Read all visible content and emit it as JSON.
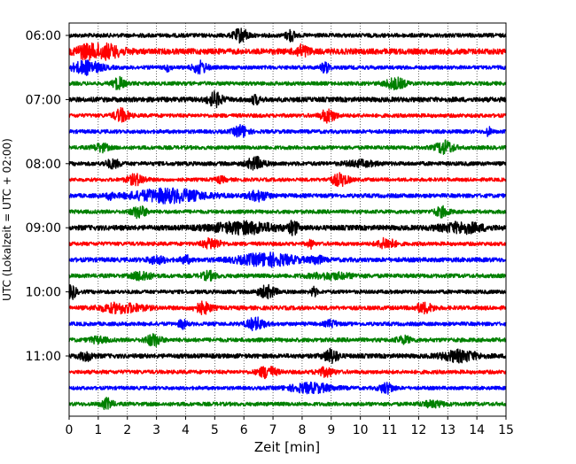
{
  "chart_data": {
    "type": "line",
    "title": "",
    "xlabel": "Zeit  [min]",
    "ylabel": "UTC (Lokalzeit = UTC + 02:00)",
    "xlim": [
      0,
      15
    ],
    "x_ticks": [
      "0",
      "1",
      "2",
      "3",
      "4",
      "5",
      "6",
      "7",
      "8",
      "9",
      "10",
      "11",
      "12",
      "13",
      "14",
      "15"
    ],
    "row_labels": [
      {
        "row": 0,
        "label": "06:00"
      },
      {
        "row": 4,
        "label": "07:00"
      },
      {
        "row": 8,
        "label": "08:00"
      },
      {
        "row": 12,
        "label": "09:00"
      },
      {
        "row": 16,
        "label": "10:00"
      },
      {
        "row": 20,
        "label": "11:00"
      }
    ],
    "grid": "vertical dotted lines at each minute",
    "trace_colors": [
      "#000000",
      "#ff0000",
      "#0000ff",
      "#008000"
    ],
    "rows": [
      {
        "start": "06:00",
        "color": "#000000",
        "noise": 0.32,
        "events": [
          {
            "t": 5.9,
            "amp": 1.0,
            "dur": 0.5
          },
          {
            "t": 7.6,
            "amp": 0.9,
            "dur": 0.3
          }
        ]
      },
      {
        "start": "06:15",
        "color": "#ff0000",
        "noise": 0.45,
        "events": [
          {
            "t": 1.2,
            "amp": 1.0,
            "dur": 1.2
          },
          {
            "t": 8.0,
            "amp": 0.8,
            "dur": 0.5
          },
          {
            "t": 0.5,
            "amp": 0.7,
            "dur": 0.6
          }
        ]
      },
      {
        "start": "06:30",
        "color": "#0000ff",
        "noise": 0.3,
        "events": [
          {
            "t": 0.6,
            "amp": 1.0,
            "dur": 1.0
          },
          {
            "t": 3.4,
            "amp": 0.5,
            "dur": 0.2
          },
          {
            "t": 4.5,
            "amp": 0.9,
            "dur": 0.5
          },
          {
            "t": 8.8,
            "amp": 0.8,
            "dur": 0.3
          }
        ]
      },
      {
        "start": "06:45",
        "color": "#008000",
        "noise": 0.3,
        "events": [
          {
            "t": 1.7,
            "amp": 0.9,
            "dur": 0.4
          },
          {
            "t": 11.2,
            "amp": 0.8,
            "dur": 0.7
          }
        ]
      },
      {
        "start": "07:00",
        "color": "#000000",
        "noise": 0.38,
        "events": [
          {
            "t": 5.0,
            "amp": 1.0,
            "dur": 0.5
          },
          {
            "t": 6.4,
            "amp": 0.6,
            "dur": 0.3
          }
        ]
      },
      {
        "start": "07:15",
        "color": "#ff0000",
        "noise": 0.3,
        "events": [
          {
            "t": 1.8,
            "amp": 1.0,
            "dur": 0.5
          },
          {
            "t": 8.9,
            "amp": 1.0,
            "dur": 0.5
          }
        ]
      },
      {
        "start": "07:30",
        "color": "#0000ff",
        "noise": 0.3,
        "events": [
          {
            "t": 5.9,
            "amp": 0.9,
            "dur": 0.5
          },
          {
            "t": 14.4,
            "amp": 0.6,
            "dur": 0.2
          }
        ]
      },
      {
        "start": "07:45",
        "color": "#008000",
        "noise": 0.3,
        "events": [
          {
            "t": 1.1,
            "amp": 0.6,
            "dur": 0.5
          },
          {
            "t": 12.9,
            "amp": 1.0,
            "dur": 0.6
          }
        ]
      },
      {
        "start": "08:00",
        "color": "#000000",
        "noise": 0.32,
        "events": [
          {
            "t": 1.5,
            "amp": 0.6,
            "dur": 0.5
          },
          {
            "t": 6.4,
            "amp": 0.9,
            "dur": 0.6
          },
          {
            "t": 10.0,
            "amp": 0.4,
            "dur": 1.0
          }
        ]
      },
      {
        "start": "08:15",
        "color": "#ff0000",
        "noise": 0.28,
        "events": [
          {
            "t": 2.3,
            "amp": 0.8,
            "dur": 0.6
          },
          {
            "t": 9.3,
            "amp": 0.9,
            "dur": 0.6
          },
          {
            "t": 5.2,
            "amp": 0.4,
            "dur": 0.4
          }
        ]
      },
      {
        "start": "08:30",
        "color": "#0000ff",
        "noise": 0.32,
        "events": [
          {
            "t": 3.4,
            "amp": 1.0,
            "dur": 2.5
          },
          {
            "t": 6.5,
            "amp": 0.7,
            "dur": 0.7
          },
          {
            "t": 1.4,
            "amp": 0.5,
            "dur": 0.2
          }
        ]
      },
      {
        "start": "08:45",
        "color": "#008000",
        "noise": 0.3,
        "events": [
          {
            "t": 2.4,
            "amp": 0.9,
            "dur": 0.5
          },
          {
            "t": 12.8,
            "amp": 0.7,
            "dur": 0.5
          }
        ]
      },
      {
        "start": "09:00",
        "color": "#000000",
        "noise": 0.4,
        "events": [
          {
            "t": 6.0,
            "amp": 0.8,
            "dur": 2.2
          },
          {
            "t": 7.7,
            "amp": 1.0,
            "dur": 0.3
          },
          {
            "t": 13.5,
            "amp": 0.7,
            "dur": 1.5
          }
        ]
      },
      {
        "start": "09:15",
        "color": "#ff0000",
        "noise": 0.3,
        "events": [
          {
            "t": 4.9,
            "amp": 0.8,
            "dur": 0.6
          },
          {
            "t": 8.3,
            "amp": 0.6,
            "dur": 0.2
          },
          {
            "t": 10.9,
            "amp": 0.8,
            "dur": 0.6
          }
        ]
      },
      {
        "start": "09:30",
        "color": "#0000ff",
        "noise": 0.35,
        "events": [
          {
            "t": 6.8,
            "amp": 0.9,
            "dur": 2.0
          },
          {
            "t": 4.0,
            "amp": 0.6,
            "dur": 0.3
          },
          {
            "t": 3.0,
            "amp": 0.5,
            "dur": 0.6
          },
          {
            "t": 8.5,
            "amp": 0.6,
            "dur": 0.4
          }
        ]
      },
      {
        "start": "09:45",
        "color": "#008000",
        "noise": 0.32,
        "events": [
          {
            "t": 2.5,
            "amp": 0.7,
            "dur": 0.6
          },
          {
            "t": 4.8,
            "amp": 0.6,
            "dur": 0.5
          },
          {
            "t": 9.0,
            "amp": 0.4,
            "dur": 1.5
          }
        ]
      },
      {
        "start": "10:00",
        "color": "#000000",
        "noise": 0.3,
        "events": [
          {
            "t": 0.1,
            "amp": 1.0,
            "dur": 0.3
          },
          {
            "t": 6.8,
            "amp": 0.9,
            "dur": 0.6
          },
          {
            "t": 8.4,
            "amp": 0.7,
            "dur": 0.2
          }
        ]
      },
      {
        "start": "10:15",
        "color": "#ff0000",
        "noise": 0.32,
        "events": [
          {
            "t": 1.8,
            "amp": 0.7,
            "dur": 1.5
          },
          {
            "t": 4.6,
            "amp": 0.8,
            "dur": 0.6
          },
          {
            "t": 12.2,
            "amp": 0.7,
            "dur": 0.6
          }
        ]
      },
      {
        "start": "10:30",
        "color": "#0000ff",
        "noise": 0.3,
        "events": [
          {
            "t": 3.9,
            "amp": 0.6,
            "dur": 0.3
          },
          {
            "t": 6.4,
            "amp": 0.9,
            "dur": 0.6
          },
          {
            "t": 9.0,
            "amp": 0.5,
            "dur": 0.4
          }
        ]
      },
      {
        "start": "10:45",
        "color": "#008000",
        "noise": 0.32,
        "events": [
          {
            "t": 2.9,
            "amp": 0.9,
            "dur": 0.5
          },
          {
            "t": 1.0,
            "amp": 0.4,
            "dur": 0.6
          },
          {
            "t": 11.5,
            "amp": 0.5,
            "dur": 0.5
          }
        ]
      },
      {
        "start": "11:00",
        "color": "#000000",
        "noise": 0.35,
        "events": [
          {
            "t": 9.0,
            "amp": 1.0,
            "dur": 0.5
          },
          {
            "t": 0.6,
            "amp": 0.6,
            "dur": 0.5
          },
          {
            "t": 13.4,
            "amp": 0.8,
            "dur": 1.2
          }
        ]
      },
      {
        "start": "11:15",
        "color": "#ff0000",
        "noise": 0.3,
        "events": [
          {
            "t": 6.8,
            "amp": 0.9,
            "dur": 0.6
          },
          {
            "t": 8.8,
            "amp": 0.6,
            "dur": 0.6
          }
        ]
      },
      {
        "start": "11:30",
        "color": "#0000ff",
        "noise": 0.28,
        "events": [
          {
            "t": 8.3,
            "amp": 0.7,
            "dur": 1.5
          },
          {
            "t": 10.9,
            "amp": 0.8,
            "dur": 0.5
          }
        ]
      },
      {
        "start": "11:45",
        "color": "#008000",
        "noise": 0.3,
        "events": [
          {
            "t": 1.3,
            "amp": 0.8,
            "dur": 0.4
          },
          {
            "t": 12.5,
            "amp": 0.4,
            "dur": 0.8
          }
        ]
      }
    ]
  }
}
